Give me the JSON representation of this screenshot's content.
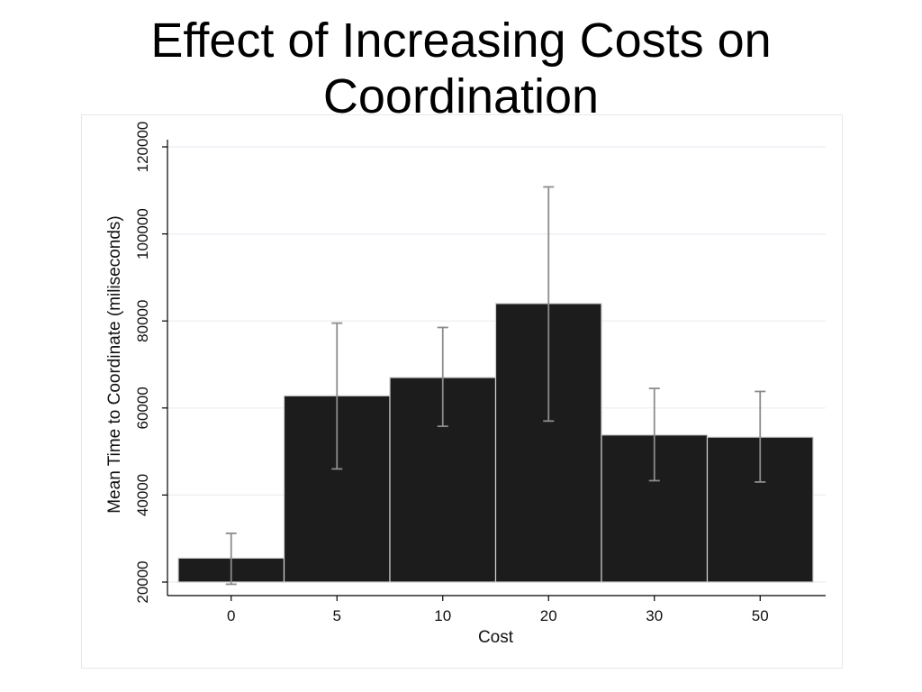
{
  "slide": {
    "title_line1": "Effect of Increasing Costs on",
    "title_line2": "Coordination"
  },
  "chart_data": {
    "type": "bar",
    "categories": [
      "0",
      "5",
      "10",
      "20",
      "30",
      "50"
    ],
    "values": [
      25500,
      62800,
      67000,
      84000,
      53800,
      53300
    ],
    "error_low": [
      19500,
      46000,
      55800,
      57000,
      43300,
      43000
    ],
    "error_high": [
      31200,
      79500,
      78500,
      110800,
      64500,
      63800
    ],
    "xlabel": "Cost",
    "ylabel": "Mean Time to Coordinate (miliseconds)",
    "yticks": [
      20000,
      40000,
      60000,
      80000,
      100000,
      120000
    ],
    "ytick_labels": [
      "20000",
      "40000",
      "60000",
      "80000",
      "100000",
      "120000"
    ],
    "ylim": [
      20000,
      120000
    ],
    "grid": true,
    "legend": "none",
    "colors": {
      "bar": "#1c1c1c",
      "bar_edge": "#cfcfcf",
      "error_bar": "#8c8c8c",
      "grid": "#eaeef2",
      "axis": "#000000",
      "frame_border": "#e4e8ec"
    }
  }
}
